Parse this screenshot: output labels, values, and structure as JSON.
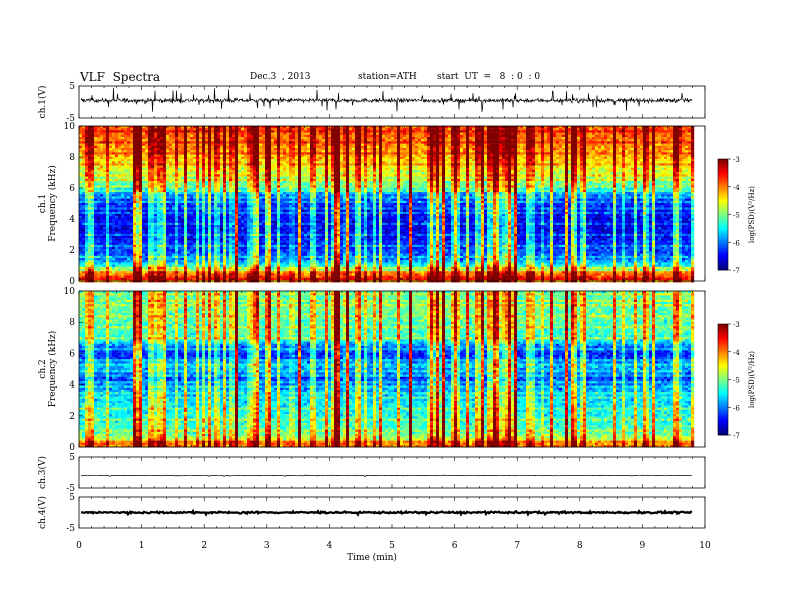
{
  "header": {
    "title": "VLF  Spectra",
    "date": "Dec.3  , 2013",
    "station": "station=ATH",
    "start": "start  UT  =   8  : 0  : 0"
  },
  "chart_data": {
    "type": "heatmap",
    "xlabel": "Time  (min)",
    "xlim": [
      0,
      10
    ],
    "xticks": [
      "0",
      "1",
      "2",
      "3",
      "4",
      "5",
      "6",
      "7",
      "8",
      "9",
      "10"
    ],
    "data_end_min": 9.8,
    "panels": [
      {
        "kind": "line",
        "ylabel": "ch.1(V)",
        "ylim": [
          -5,
          5
        ],
        "yticks": [
          "5",
          "-5"
        ],
        "baseline": 0.5,
        "noise": 0.55,
        "spike": 2.2
      },
      {
        "kind": "spectrogram",
        "channel": "ch.1",
        "ylabel": "Frequency  (kHz)",
        "ylim": [
          0,
          10
        ],
        "yticks": [
          "0",
          "2",
          "4",
          "6",
          "8",
          "10"
        ],
        "profile_khz": [
          0,
          0.3,
          0.5,
          0.8,
          1.5,
          2.5,
          3.5,
          4.5,
          5.5,
          6.0,
          6.5,
          7.5,
          8.5,
          9.5,
          10
        ],
        "profile_level": [
          -4.2,
          -3.6,
          -4.0,
          -5.0,
          -6.1,
          -6.4,
          -6.6,
          -6.5,
          -6.2,
          -5.4,
          -5.0,
          -4.5,
          -4.1,
          -3.9,
          -3.8
        ]
      },
      {
        "kind": "spectrogram",
        "channel": "ch.2",
        "ylabel": "Frequency  (kHz)",
        "ylim": [
          0,
          10
        ],
        "yticks": [
          "0",
          "2",
          "4",
          "6",
          "8",
          "10"
        ],
        "profile_khz": [
          0,
          0.2,
          0.5,
          1.0,
          2.0,
          3.0,
          3.8,
          4.5,
          5.2,
          6.0,
          6.5,
          7.0,
          8.0,
          9.0,
          10
        ],
        "profile_level": [
          -4.5,
          -3.8,
          -4.6,
          -5.2,
          -5.4,
          -5.6,
          -5.9,
          -6.3,
          -5.8,
          -6.4,
          -6.1,
          -5.3,
          -5.2,
          -5.1,
          -5.2
        ]
      },
      {
        "kind": "line",
        "ylabel": "ch.3(V)",
        "ylim": [
          -5,
          5
        ],
        "yticks": [
          "5",
          "-5"
        ],
        "baseline": -1.0,
        "noise": 0.05,
        "spike": 0.2
      },
      {
        "kind": "line",
        "ylabel": "ch.4(V)",
        "ylim": [
          -5,
          5
        ],
        "yticks": [
          "5",
          "-5"
        ],
        "baseline": 0.0,
        "noise": 0.25,
        "spike": 0.4
      }
    ],
    "colorbar": {
      "label": "log(PSD)(V²/Hz)",
      "range": [
        -7,
        -3
      ],
      "ticks": [
        "-3",
        "-4",
        "-5",
        "-6",
        "-7"
      ]
    }
  }
}
